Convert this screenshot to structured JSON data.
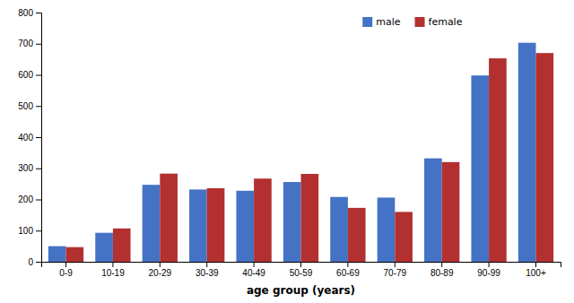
{
  "chart_data": {
    "type": "bar",
    "categories": [
      "0-9",
      "10-19",
      "20-29",
      "30-39",
      "40-49",
      "50-59",
      "60-69",
      "70-79",
      "80-89",
      "90-99",
      "100+"
    ],
    "series": [
      {
        "name": "male",
        "color": "#4472C4",
        "values": [
          50,
          93,
          247,
          232,
          228,
          256,
          208,
          206,
          332,
          598,
          703
        ]
      },
      {
        "name": "female",
        "color": "#B33030",
        "values": [
          47,
          107,
          283,
          236,
          267,
          282,
          173,
          160,
          320,
          653,
          670
        ]
      }
    ],
    "xlabel": "age group (years)",
    "ylim": [
      0,
      800
    ],
    "yticks": [
      0,
      100,
      200,
      300,
      400,
      500,
      600,
      700,
      800
    ],
    "grid": false,
    "legend": "upper right"
  }
}
